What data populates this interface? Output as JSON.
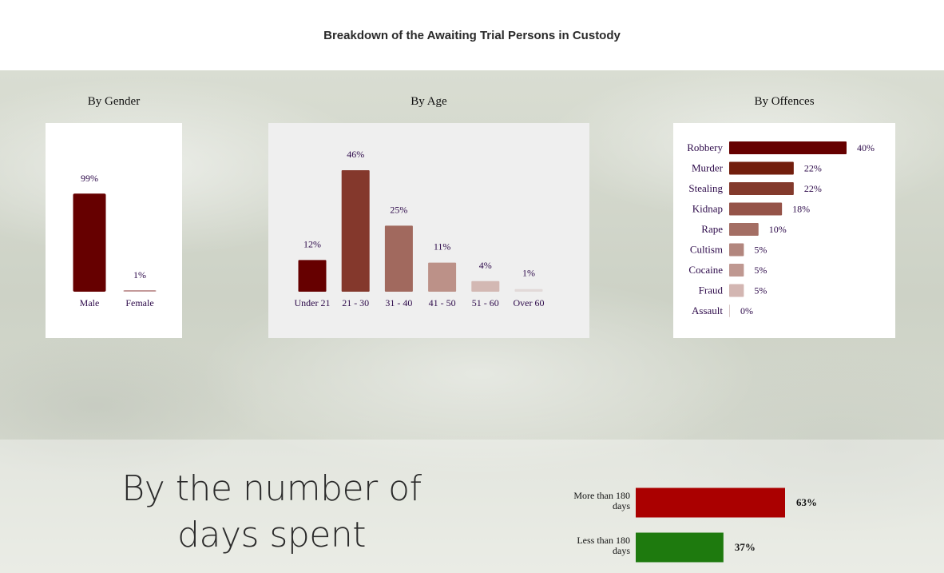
{
  "page": {
    "title": "Breakdown of the Awaiting Trial Persons in Custody"
  },
  "sections": {
    "gender_title": "By Gender",
    "age_title": "By Age",
    "offences_title": "By Offences",
    "days_title_line1": "By the number of",
    "days_title_line2": "days spent"
  },
  "colors": {
    "text": "#2d0a4a",
    "dark_red": "#660000",
    "days_red": "#aa0000",
    "days_green": "#1e7a0e"
  },
  "chart_data": [
    {
      "type": "bar",
      "title": "By Gender",
      "categories": [
        "Male",
        "Female"
      ],
      "values": [
        99,
        1
      ],
      "labels": [
        "99%",
        "1%"
      ],
      "colors": [
        "#660000",
        "#c49a9a"
      ],
      "ylim": [
        0,
        100
      ]
    },
    {
      "type": "bar",
      "title": "By Age",
      "categories": [
        "Under 21",
        "21 - 30",
        "31 - 40",
        "41 - 50",
        "51 - 60",
        "Over 60"
      ],
      "values": [
        12,
        46,
        25,
        11,
        4,
        1
      ],
      "labels": [
        "12%",
        "46%",
        "25%",
        "11%",
        "4%",
        "1%"
      ],
      "colors": [
        "#660000",
        "#84382c",
        "#a1695e",
        "#bc9188",
        "#d3b8b3",
        "#e2d9d8"
      ],
      "ylim": [
        0,
        46
      ]
    },
    {
      "type": "bar",
      "orientation": "horizontal",
      "title": "By Offences",
      "categories": [
        "Robbery",
        "Murder",
        "Stealing",
        "Kidnap",
        "Rape",
        "Cultism",
        "Cocaine",
        "Fraud",
        "Assault"
      ],
      "values": [
        40,
        22,
        22,
        18,
        10,
        5,
        5,
        5,
        0
      ],
      "labels": [
        "40%",
        "22%",
        "22%",
        "18%",
        "10%",
        "5%",
        "5%",
        "5%",
        "0%"
      ],
      "colors": [
        "#660000",
        "#721e0d",
        "#833a2c",
        "#955348",
        "#a46e64",
        "#b2867e",
        "#bf9891",
        "#d3b6b2",
        "#d8c8c6"
      ],
      "xlim": [
        0,
        40
      ]
    },
    {
      "type": "bar",
      "orientation": "horizontal",
      "title": "By the number of days spent",
      "categories": [
        "More than 180 days",
        "Less than 180 days"
      ],
      "category_lines": [
        [
          "More than 180",
          "days"
        ],
        [
          "Less than 180",
          "days"
        ]
      ],
      "values": [
        63,
        37
      ],
      "labels": [
        "63%",
        "37%"
      ],
      "colors": [
        "#aa0000",
        "#1e7a0e"
      ],
      "xlim": [
        0,
        63
      ]
    }
  ]
}
